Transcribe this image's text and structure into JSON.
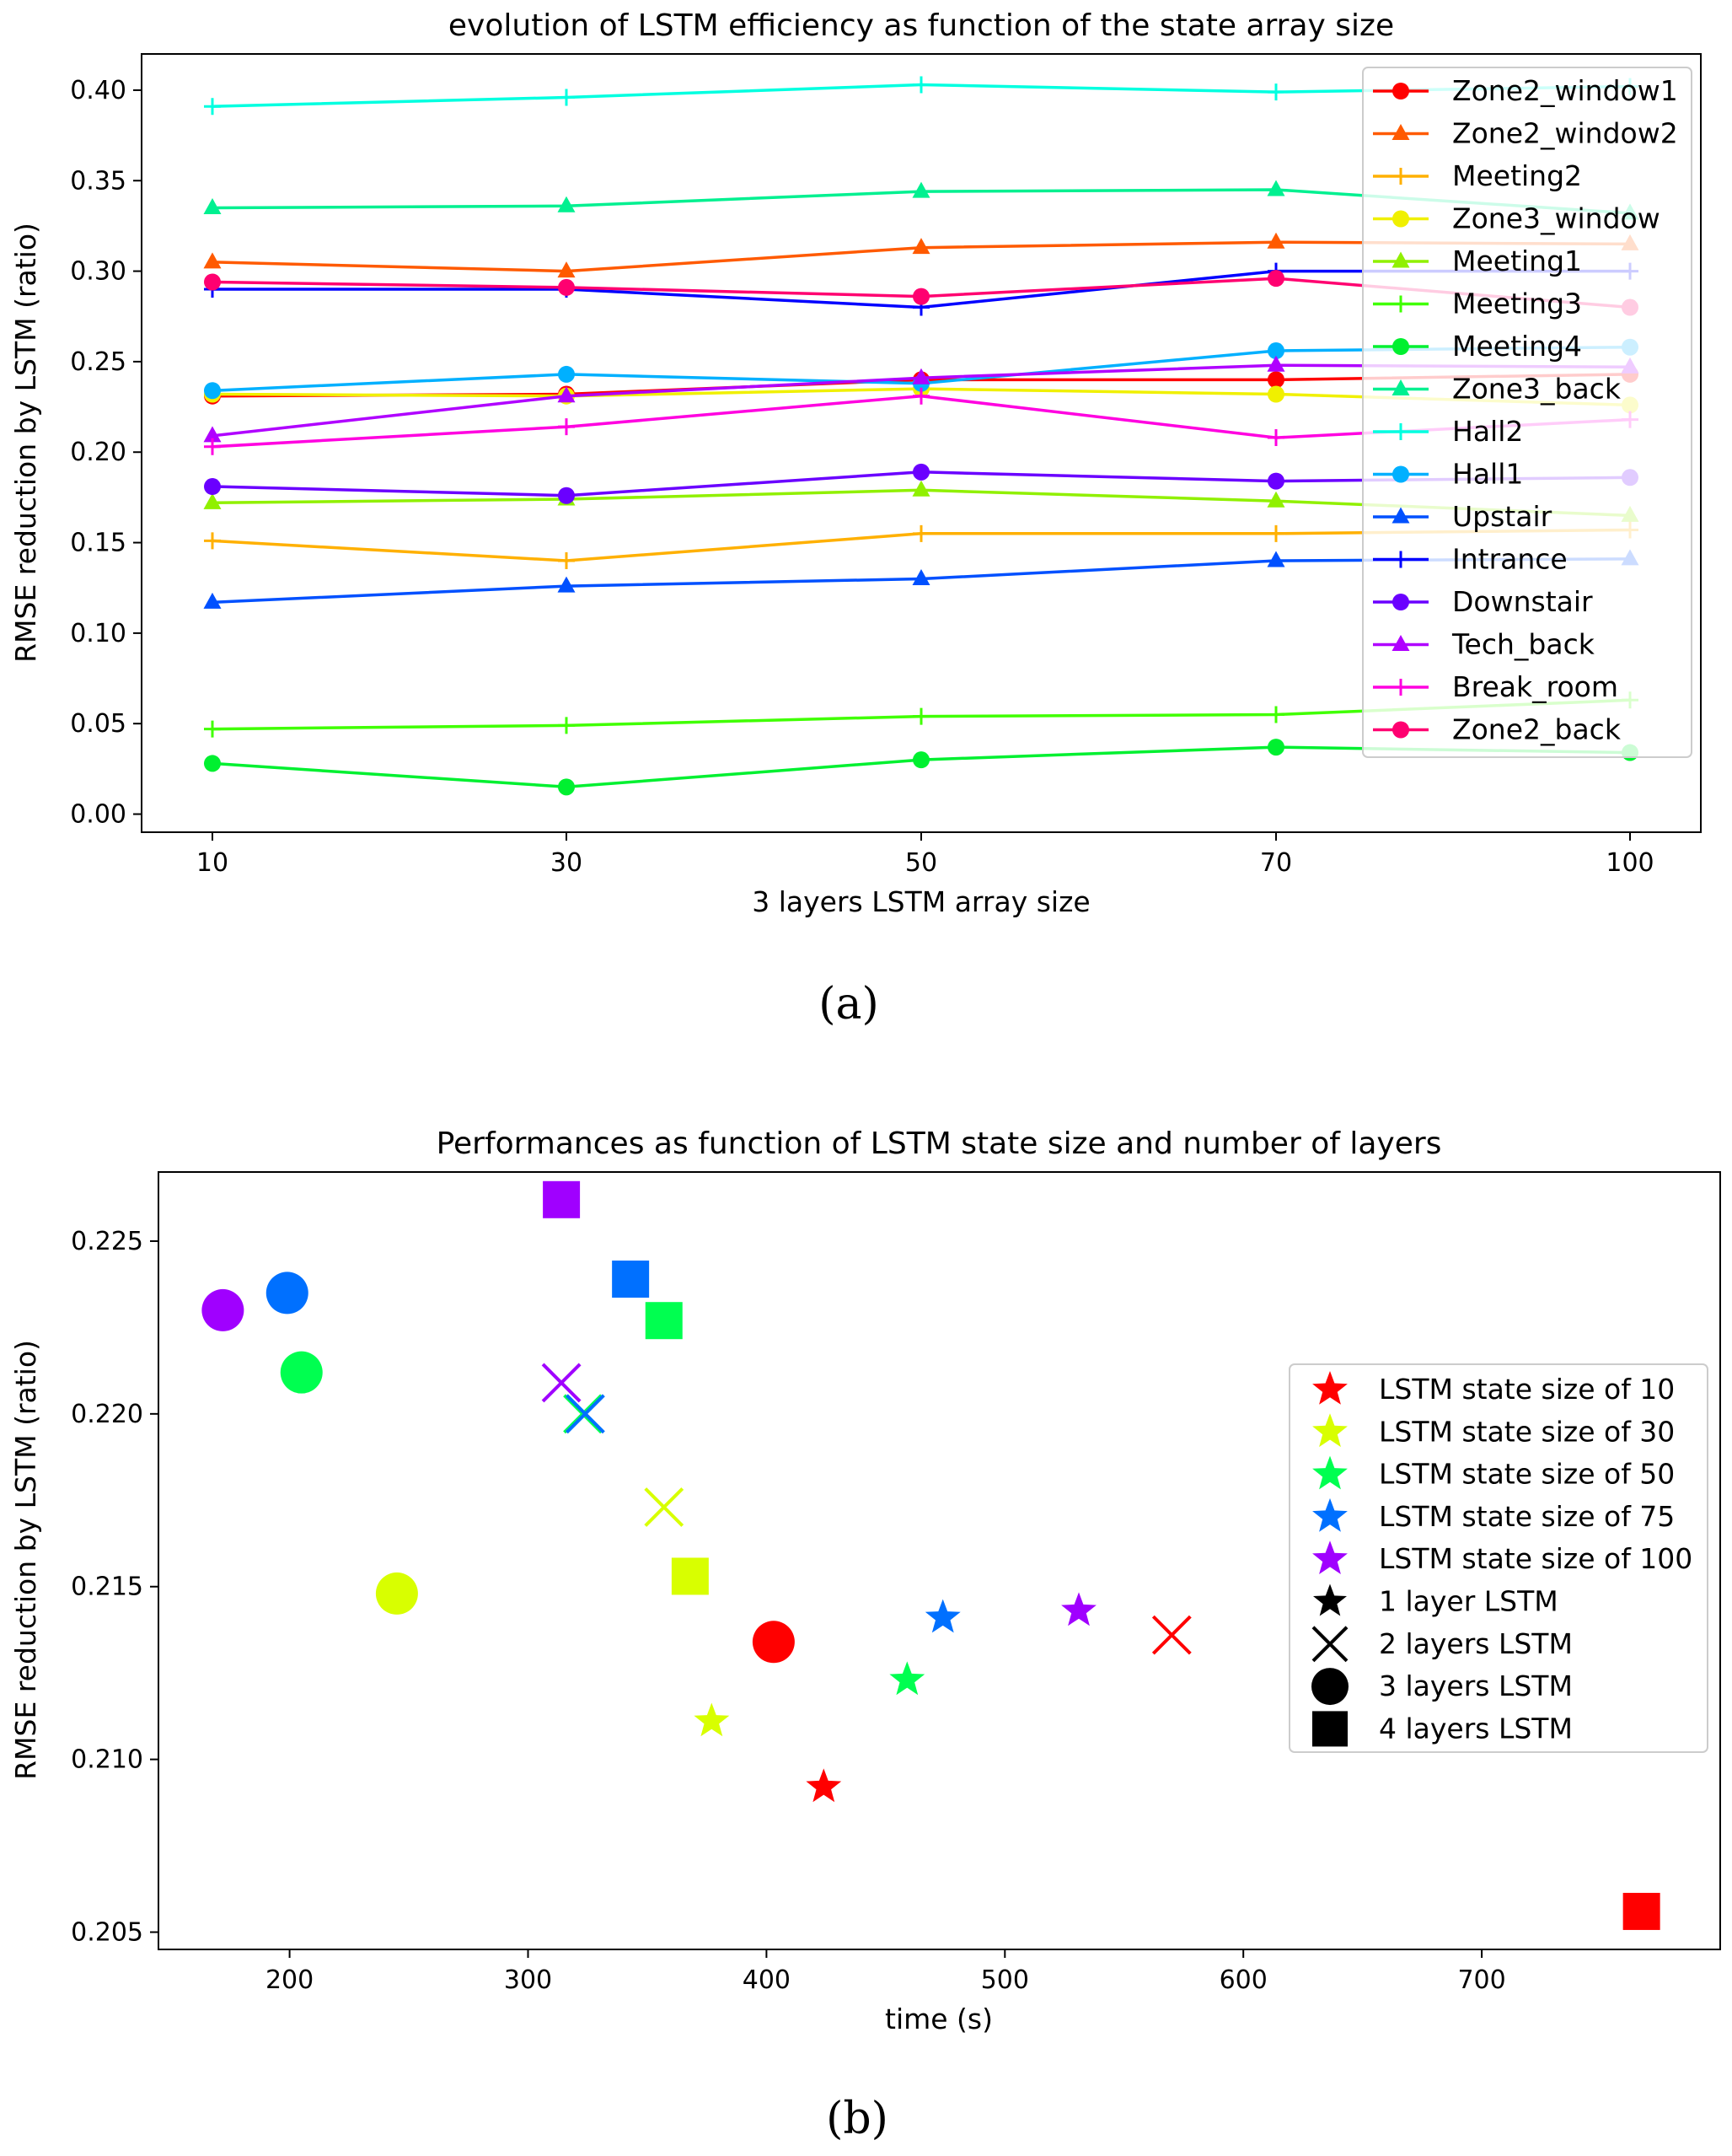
{
  "chart_data": [
    {
      "type": "line",
      "title": "evolution of LSTM efficiency as function of the state array size",
      "xlabel": "3 layers LSTM array size",
      "ylabel": "RMSE reduction by LSTM (ratio)",
      "categories": [
        "10",
        "30",
        "50",
        "70",
        "100"
      ],
      "ylim": [
        -0.01,
        0.42
      ],
      "yticks": [
        "0.00",
        "0.05",
        "0.10",
        "0.15",
        "0.20",
        "0.25",
        "0.30",
        "0.35",
        "0.40"
      ],
      "legend_position": "top-right",
      "series": [
        {
          "name": "Zone2_window1",
          "color": "#ff0000",
          "marker": "circle",
          "values": [
            0.231,
            0.232,
            0.24,
            0.24,
            0.243
          ]
        },
        {
          "name": "Zone2_window2",
          "color": "#ff5a00",
          "marker": "triangle",
          "values": [
            0.305,
            0.3,
            0.313,
            0.316,
            0.315
          ]
        },
        {
          "name": "Meeting2",
          "color": "#ffb000",
          "marker": "plus",
          "values": [
            0.151,
            0.14,
            0.155,
            0.155,
            0.157
          ]
        },
        {
          "name": "Zone3_window",
          "color": "#f0f000",
          "marker": "circle",
          "values": [
            0.232,
            0.231,
            0.235,
            0.232,
            0.226
          ]
        },
        {
          "name": "Meeting1",
          "color": "#90f000",
          "marker": "triangle",
          "values": [
            0.172,
            0.174,
            0.179,
            0.173,
            0.165
          ]
        },
        {
          "name": "Meeting3",
          "color": "#40ff00",
          "marker": "plus",
          "values": [
            0.047,
            0.049,
            0.054,
            0.055,
            0.063
          ]
        },
        {
          "name": "Meeting4",
          "color": "#00f030",
          "marker": "circle",
          "values": [
            0.028,
            0.015,
            0.03,
            0.037,
            0.034
          ]
        },
        {
          "name": "Zone3_back",
          "color": "#00f090",
          "marker": "triangle",
          "values": [
            0.335,
            0.336,
            0.344,
            0.345,
            0.332
          ]
        },
        {
          "name": "Hall2",
          "color": "#00ffe0",
          "marker": "plus",
          "values": [
            0.391,
            0.396,
            0.403,
            0.399,
            0.402
          ]
        },
        {
          "name": "Hall1",
          "color": "#00b0ff",
          "marker": "circle",
          "values": [
            0.234,
            0.243,
            0.238,
            0.256,
            0.258
          ]
        },
        {
          "name": "Upstair",
          "color": "#0050ff",
          "marker": "triangle",
          "values": [
            0.117,
            0.126,
            0.13,
            0.14,
            0.141
          ]
        },
        {
          "name": "Intrance",
          "color": "#0000ff",
          "marker": "plus",
          "values": [
            0.29,
            0.29,
            0.28,
            0.3,
            0.3
          ]
        },
        {
          "name": "Downstair",
          "color": "#6a00ff",
          "marker": "circle",
          "values": [
            0.181,
            0.176,
            0.189,
            0.184,
            0.186
          ]
        },
        {
          "name": "Tech_back",
          "color": "#b000ff",
          "marker": "triangle",
          "values": [
            0.209,
            0.231,
            0.241,
            0.248,
            0.247
          ]
        },
        {
          "name": "Break_room",
          "color": "#ff00e0",
          "marker": "plus",
          "values": [
            0.203,
            0.214,
            0.231,
            0.208,
            0.218
          ]
        },
        {
          "name": "Zone2_back",
          "color": "#ff0070",
          "marker": "circle",
          "values": [
            0.294,
            0.291,
            0.286,
            0.296,
            0.28
          ]
        }
      ]
    },
    {
      "type": "scatter",
      "title": "Performances as function of LSTM state size and number of layers",
      "xlabel": "time (s)",
      "ylabel": "RMSE reduction by LSTM (ratio)",
      "xlim": [
        145,
        800
      ],
      "ylim": [
        0.2045,
        0.227
      ],
      "xticks": [
        "200",
        "300",
        "400",
        "500",
        "600",
        "700"
      ],
      "yticks": [
        "0.205",
        "0.210",
        "0.215",
        "0.220",
        "0.225"
      ],
      "legend_position": "center-right",
      "sizes": [
        {
          "label": "LSTM state size of 10",
          "color": "#ff0000"
        },
        {
          "label": "LSTM state size of 30",
          "color": "#d8ff00"
        },
        {
          "label": "LSTM state size of 50",
          "color": "#00ff50"
        },
        {
          "label": "LSTM state size of 75",
          "color": "#0070ff"
        },
        {
          "label": "LSTM state size of 100",
          "color": "#a000ff"
        }
      ],
      "layers": [
        {
          "label": "1 layer  LSTM",
          "marker": "star"
        },
        {
          "label": "2 layers LSTM",
          "marker": "x"
        },
        {
          "label": "3 layers LSTM",
          "marker": "circle"
        },
        {
          "label": "4 layers LSTM",
          "marker": "square"
        }
      ],
      "points": [
        {
          "size": 0,
          "layer": 0,
          "x": 424,
          "y": 0.2092
        },
        {
          "size": 1,
          "layer": 0,
          "x": 377,
          "y": 0.2111
        },
        {
          "size": 2,
          "layer": 0,
          "x": 459,
          "y": 0.2123
        },
        {
          "size": 3,
          "layer": 0,
          "x": 474,
          "y": 0.2141
        },
        {
          "size": 4,
          "layer": 0,
          "x": 531,
          "y": 0.2143
        },
        {
          "size": 0,
          "layer": 1,
          "x": 570,
          "y": 0.2136
        },
        {
          "size": 1,
          "layer": 1,
          "x": 357,
          "y": 0.2173
        },
        {
          "size": 2,
          "layer": 1,
          "x": 323,
          "y": 0.22
        },
        {
          "size": 3,
          "layer": 1,
          "x": 324,
          "y": 0.22
        },
        {
          "size": 4,
          "layer": 1,
          "x": 314,
          "y": 0.2209
        },
        {
          "size": 0,
          "layer": 2,
          "x": 403,
          "y": 0.2134
        },
        {
          "size": 1,
          "layer": 2,
          "x": 245,
          "y": 0.2148
        },
        {
          "size": 2,
          "layer": 2,
          "x": 205,
          "y": 0.2212
        },
        {
          "size": 3,
          "layer": 2,
          "x": 199,
          "y": 0.2235
        },
        {
          "size": 4,
          "layer": 2,
          "x": 172,
          "y": 0.223
        },
        {
          "size": 0,
          "layer": 3,
          "x": 767,
          "y": 0.2056
        },
        {
          "size": 1,
          "layer": 3,
          "x": 368,
          "y": 0.2153
        },
        {
          "size": 2,
          "layer": 3,
          "x": 357,
          "y": 0.2227
        },
        {
          "size": 3,
          "layer": 3,
          "x": 343,
          "y": 0.2239
        },
        {
          "size": 4,
          "layer": 3,
          "x": 314,
          "y": 0.2262
        }
      ]
    }
  ],
  "captions": [
    "(a)",
    "(b)"
  ]
}
